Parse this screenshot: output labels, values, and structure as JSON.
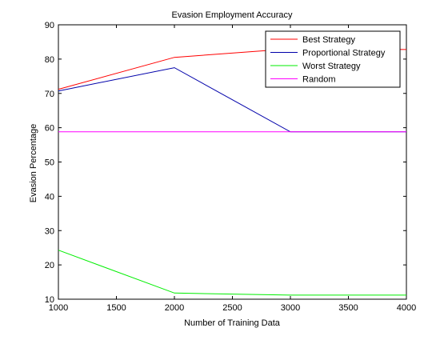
{
  "chart_data": {
    "type": "line",
    "title": "Evasion Employment Accuracy",
    "xlabel": "Number of Training Data",
    "ylabel": "Evasion Percentage",
    "xlim": [
      1000,
      4000
    ],
    "ylim": [
      10,
      90
    ],
    "xticks": [
      1000,
      1500,
      2000,
      2500,
      3000,
      3500,
      4000
    ],
    "yticks": [
      10,
      20,
      30,
      40,
      50,
      60,
      70,
      80,
      90
    ],
    "grid": false,
    "legend_position": "top-right",
    "series": [
      {
        "name": "Best Strategy",
        "color": "#ff0000",
        "x": [
          1000,
          2000,
          3000,
          4000
        ],
        "y": [
          71.2,
          80.5,
          83.0,
          82.8
        ]
      },
      {
        "name": "Proportional Strategy",
        "color": "#0000aa",
        "x": [
          1000,
          2000,
          3000,
          4000
        ],
        "y": [
          70.7,
          77.5,
          58.8,
          58.8
        ]
      },
      {
        "name": "Worst Strategy",
        "color": "#00ee00",
        "x": [
          1000,
          2000,
          3000,
          4000
        ],
        "y": [
          24.3,
          11.8,
          11.2,
          11.2
        ]
      },
      {
        "name": "Random",
        "color": "#ff00ff",
        "x": [
          1000,
          2000,
          3000,
          4000
        ],
        "y": [
          58.8,
          58.8,
          58.8,
          58.8
        ]
      }
    ]
  }
}
